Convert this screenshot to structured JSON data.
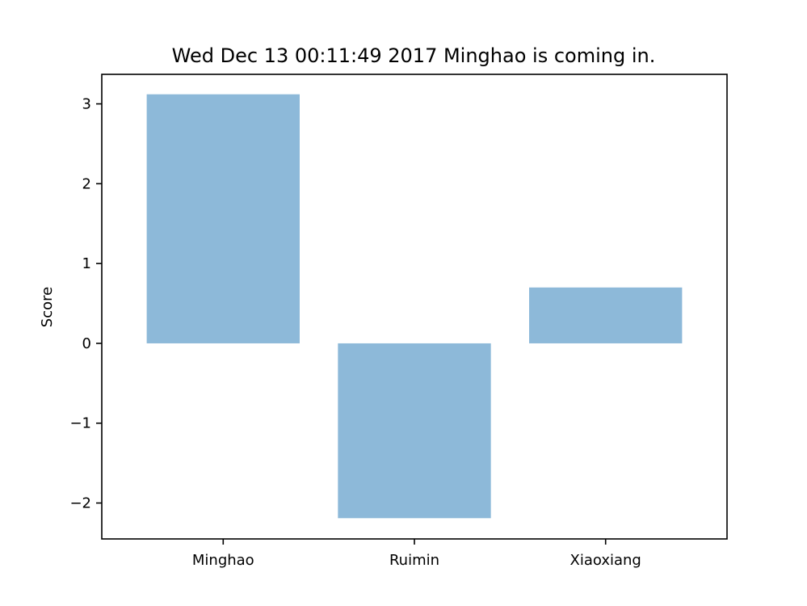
{
  "chart_data": {
    "type": "bar",
    "title": "Wed Dec 13 00:11:49 2017 Minghao is coming in.",
    "xlabel": "",
    "ylabel": "Score",
    "categories": [
      "Minghao",
      "Ruimin",
      "Xiaoxiang"
    ],
    "values": [
      3.12,
      -2.19,
      0.7
    ],
    "ylim": [
      -2.45,
      3.37
    ],
    "yticks": [
      3,
      2,
      1,
      0,
      -1,
      -2
    ],
    "ytick_labels": [
      "3",
      "2",
      "1",
      "0",
      "−1",
      "−2"
    ],
    "bar_color": "#8db9d9",
    "grid": false,
    "legend": "none"
  }
}
